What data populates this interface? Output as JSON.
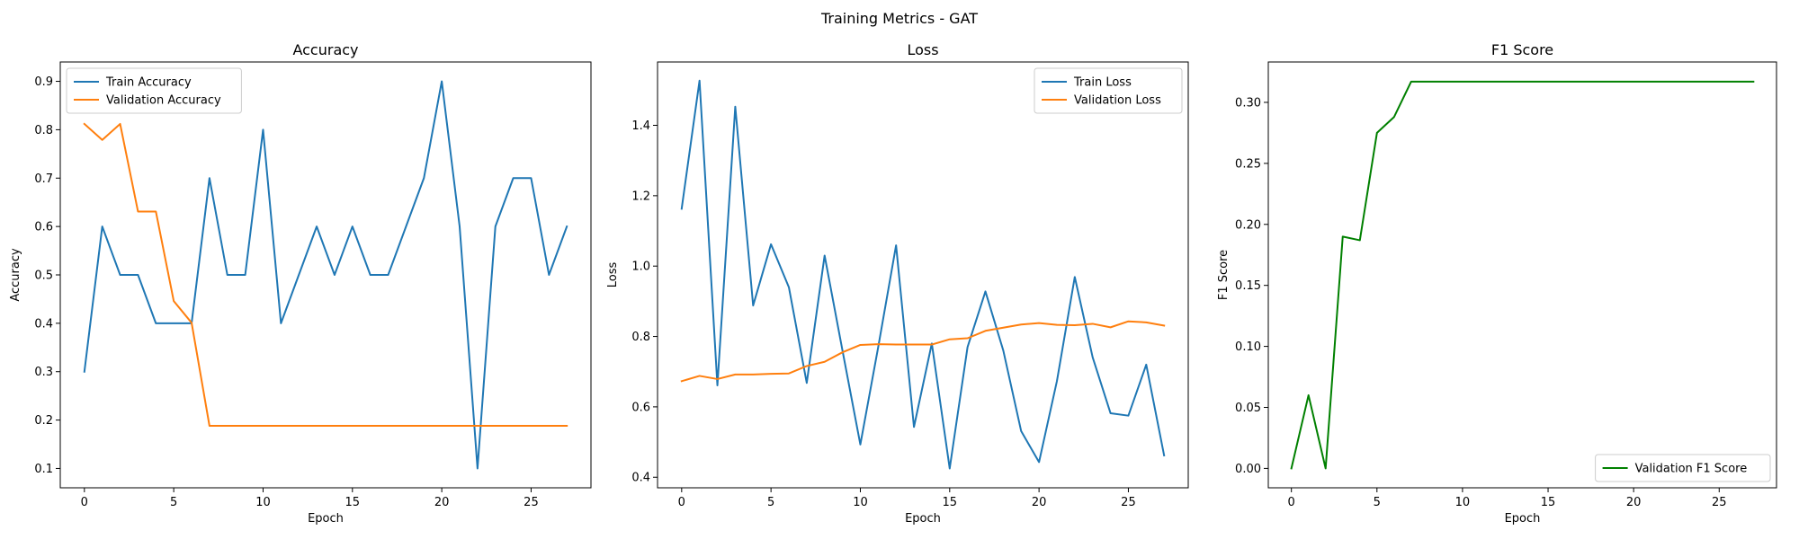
{
  "figure": {
    "suptitle": "Training Metrics - GAT"
  },
  "chart_data": [
    {
      "type": "line",
      "title": "Accuracy",
      "xlabel": "Epoch",
      "ylabel": "Accuracy",
      "x": [
        0,
        1,
        2,
        3,
        4,
        5,
        6,
        7,
        8,
        9,
        10,
        11,
        12,
        13,
        14,
        15,
        16,
        17,
        18,
        19,
        20,
        21,
        22,
        23,
        24,
        25,
        26,
        27
      ],
      "xlim": [
        -1.35,
        28.35
      ],
      "ylim": [
        0.06,
        0.94
      ],
      "xticks": [
        0,
        5,
        10,
        15,
        20,
        25
      ],
      "yticks": [
        0.1,
        0.2,
        0.3,
        0.4,
        0.5,
        0.6,
        0.7,
        0.8,
        0.9
      ],
      "legend_loc": "upper left",
      "grid": false,
      "series": [
        {
          "name": "Train Accuracy",
          "color": "#1f77b4",
          "values": [
            0.3,
            0.6,
            0.5,
            0.5,
            0.4,
            0.4,
            0.4,
            0.7,
            0.5,
            0.5,
            0.8,
            0.4,
            0.5,
            0.6,
            0.5,
            0.6,
            0.5,
            0.5,
            0.6,
            0.7,
            0.9,
            0.6,
            0.1,
            0.6,
            0.7,
            0.7,
            0.5,
            0.6
          ]
        },
        {
          "name": "Validation Accuracy",
          "color": "#ff7f0e",
          "values": [
            0.812,
            0.779,
            0.812,
            0.631,
            0.631,
            0.446,
            0.401,
            0.188,
            0.188,
            0.188,
            0.188,
            0.188,
            0.188,
            0.188,
            0.188,
            0.188,
            0.188,
            0.188,
            0.188,
            0.188,
            0.188,
            0.188,
            0.188,
            0.188,
            0.188,
            0.188,
            0.188,
            0.188
          ]
        }
      ]
    },
    {
      "type": "line",
      "title": "Loss",
      "xlabel": "Epoch",
      "ylabel": "Loss",
      "x": [
        0,
        1,
        2,
        3,
        4,
        5,
        6,
        7,
        8,
        9,
        10,
        11,
        12,
        13,
        14,
        15,
        16,
        17,
        18,
        19,
        20,
        21,
        22,
        23,
        24,
        25,
        26,
        27
      ],
      "xlim": [
        -1.35,
        28.35
      ],
      "ylim": [
        0.37,
        1.58
      ],
      "xticks": [
        0,
        5,
        10,
        15,
        20,
        25
      ],
      "yticks": [
        0.4,
        0.6,
        0.8,
        1.0,
        1.2,
        1.4
      ],
      "ytick_labels": [
        "0.4",
        "0.6",
        "0.8",
        "1.0",
        "1.2",
        "1.4"
      ],
      "legend_loc": "upper right",
      "grid": false,
      "series": [
        {
          "name": "Train Loss",
          "color": "#1f77b4",
          "values": [
            1.163,
            1.527,
            0.661,
            1.453,
            0.888,
            1.062,
            0.94,
            0.668,
            1.03,
            0.76,
            0.493,
            0.77,
            1.059,
            0.543,
            0.78,
            0.425,
            0.77,
            0.928,
            0.76,
            0.531,
            0.443,
            0.673,
            0.969,
            0.741,
            0.582,
            0.575,
            0.72,
            0.462
          ]
        },
        {
          "name": "Validation Loss",
          "color": "#ff7f0e",
          "values": [
            0.673,
            0.688,
            0.679,
            0.692,
            0.692,
            0.694,
            0.695,
            0.716,
            0.728,
            0.755,
            0.776,
            0.778,
            0.777,
            0.777,
            0.777,
            0.792,
            0.795,
            0.816,
            0.825,
            0.834,
            0.838,
            0.833,
            0.832,
            0.836,
            0.826,
            0.843,
            0.84,
            0.831
          ]
        }
      ]
    },
    {
      "type": "line",
      "title": "F1 Score",
      "xlabel": "Epoch",
      "ylabel": "F1 Score",
      "x": [
        0,
        1,
        2,
        3,
        4,
        5,
        6,
        7,
        8,
        9,
        10,
        11,
        12,
        13,
        14,
        15,
        16,
        17,
        18,
        19,
        20,
        21,
        22,
        23,
        24,
        25,
        26,
        27
      ],
      "xlim": [
        -1.35,
        28.35
      ],
      "ylim": [
        -0.0159,
        0.3331
      ],
      "xticks": [
        0,
        5,
        10,
        15,
        20,
        25
      ],
      "yticks": [
        0.0,
        0.05,
        0.1,
        0.15,
        0.2,
        0.25,
        0.3
      ],
      "ytick_labels": [
        "0.00",
        "0.05",
        "0.10",
        "0.15",
        "0.20",
        "0.25",
        "0.30"
      ],
      "legend_loc": "lower right",
      "grid": false,
      "series": [
        {
          "name": "Validation F1 Score",
          "color": "#008000",
          "values": [
            0.0,
            0.06,
            0.0,
            0.19,
            0.187,
            0.275,
            0.288,
            0.317,
            0.317,
            0.317,
            0.317,
            0.317,
            0.317,
            0.317,
            0.317,
            0.317,
            0.317,
            0.317,
            0.317,
            0.317,
            0.317,
            0.317,
            0.317,
            0.317,
            0.317,
            0.317,
            0.317,
            0.317
          ]
        }
      ]
    }
  ]
}
